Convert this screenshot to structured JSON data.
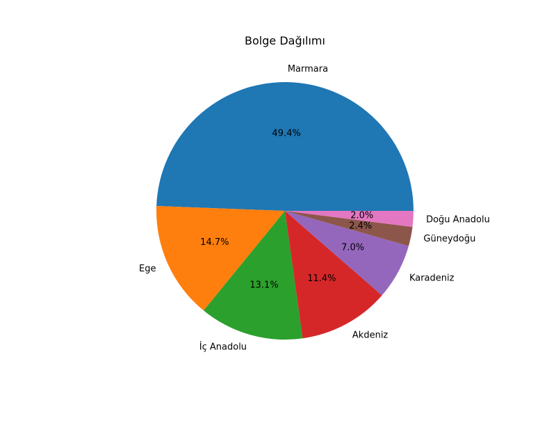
{
  "chart_data": {
    "type": "pie",
    "title": "Bolge Dağılımı",
    "categories": [
      "Marmara",
      "Ege",
      "İç Anadolu",
      "Akdeniz",
      "Karadeniz",
      "Güneydoğu",
      "Doğu Anadolu"
    ],
    "values": [
      49.4,
      14.7,
      13.1,
      11.4,
      7.0,
      2.4,
      2.0
    ],
    "value_labels": [
      "49.4%",
      "14.7%",
      "13.1%",
      "11.4%",
      "7.0%",
      "2.4%",
      "2.0%"
    ],
    "colors": [
      "#1f77b4",
      "#ff7f0e",
      "#2ca02c",
      "#d62728",
      "#9467bd",
      "#8c564b",
      "#e377c2"
    ],
    "start_angle_deg": 0,
    "direction": "counterclockwise",
    "legend": "none"
  }
}
